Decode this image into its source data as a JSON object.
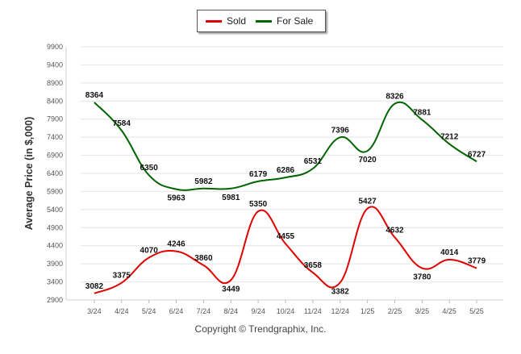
{
  "legend": {
    "sold_label": "Sold",
    "forsale_label": "For Sale"
  },
  "copyright": "Copyright © Trendgraphix, Inc.",
  "chart_data": {
    "type": "line",
    "ylabel": "Average Price (in $,000)",
    "xlabel": "",
    "ylim": [
      2900,
      9900
    ],
    "yticks": [
      2900,
      3400,
      3900,
      4400,
      4900,
      5400,
      5900,
      6400,
      6900,
      7400,
      7900,
      8400,
      8900,
      9400,
      9900
    ],
    "categories": [
      "3/24",
      "4/24",
      "5/24",
      "6/24",
      "7/24",
      "8/24",
      "9/24",
      "10/24",
      "11/24",
      "12/24",
      "1/25",
      "2/25",
      "3/25",
      "4/25",
      "5/25"
    ],
    "series": [
      {
        "name": "Sold",
        "color": "#e00000",
        "values": [
          3082,
          3375,
          4070,
          4246,
          3860,
          3449,
          5350,
          4455,
          3658,
          3382,
          5427,
          4632,
          3780,
          4014,
          3779
        ]
      },
      {
        "name": "For Sale",
        "color": "#006400",
        "values": [
          8364,
          7584,
          6350,
          5963,
          5982,
          5981,
          6179,
          6286,
          6531,
          7396,
          7020,
          8326,
          7881,
          7212,
          6727
        ]
      }
    ],
    "grid": true,
    "legend_position": "top-center"
  }
}
